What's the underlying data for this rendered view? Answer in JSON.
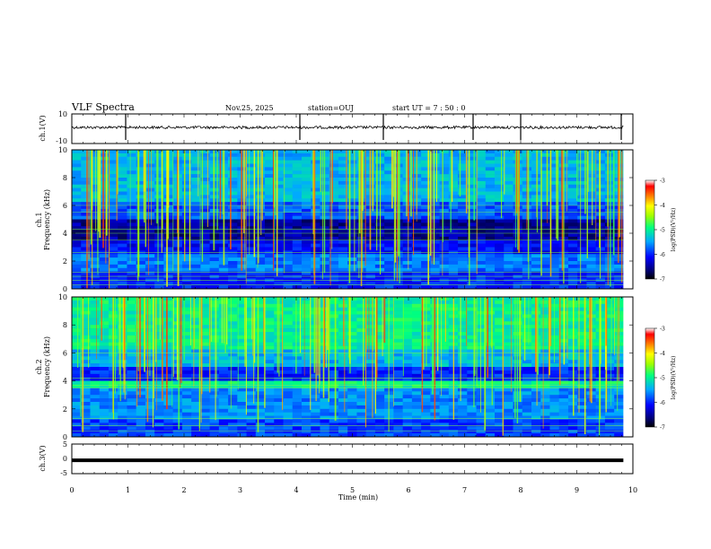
{
  "header": {
    "title": "VLF Spectra",
    "date": "Nov.25, 2025",
    "station": "station=OUJ",
    "start_ut": "start  UT =  7 : 50 : 0"
  },
  "chart_data": [
    {
      "type": "line",
      "name": "ch1-waveform",
      "ylabel": "ch.1(V)",
      "ylim": [
        -10,
        10
      ],
      "ytick_labels": [
        "10",
        "-10"
      ],
      "baseline": 0,
      "description_values": "noisy waveform near 0 V with occasional spikes"
    },
    {
      "type": "heatmap",
      "name": "ch1-spectrogram",
      "ylabel": "ch.1\nFrequency (kHz)",
      "ylabel_top": "ch.1",
      "ylabel_bottom": "Frequency (kHz)",
      "ylim": [
        0,
        10
      ],
      "ytick_labels": [
        "0",
        "2",
        "4",
        "6",
        "8",
        "10"
      ],
      "colorbar": {
        "label": "log(PSD)(V²/Hz)",
        "range": [
          -7,
          -3
        ],
        "tick_labels": [
          "-3",
          "-4",
          "-5",
          "-6",
          "-7"
        ]
      }
    },
    {
      "type": "heatmap",
      "name": "ch2-spectrogram",
      "ylabel_top": "ch.2",
      "ylabel_bottom": "Frequency (kHz)",
      "ylim": [
        0,
        10
      ],
      "ytick_labels": [
        "0",
        "2",
        "4",
        "6",
        "8",
        "10"
      ],
      "colorbar": {
        "label": "log(PSD)(V²/Hz)",
        "range": [
          -7,
          -3
        ],
        "tick_labels": [
          "-3",
          "-4",
          "-5",
          "-6",
          "-7"
        ]
      }
    },
    {
      "type": "line",
      "name": "ch3-waveform",
      "ylabel": "ch.3(V)",
      "ylim": [
        -5,
        5
      ],
      "ytick_labels": [
        "5",
        "0",
        "-5"
      ],
      "constant_value": -0.5
    }
  ],
  "xaxis": {
    "label": "Time (min)",
    "range": [
      0,
      10
    ],
    "tick_labels": [
      "0",
      "1",
      "2",
      "3",
      "4",
      "5",
      "6",
      "7",
      "8",
      "9",
      "10"
    ]
  },
  "colors": {
    "background": "#ffffff",
    "axis": "#000000",
    "colormap": [
      "#000000",
      "#00006e",
      "#0000ff",
      "#00aaff",
      "#00ff80",
      "#a0ff00",
      "#ffff00",
      "#ff8000",
      "#ff0000",
      "#ffffff"
    ]
  }
}
